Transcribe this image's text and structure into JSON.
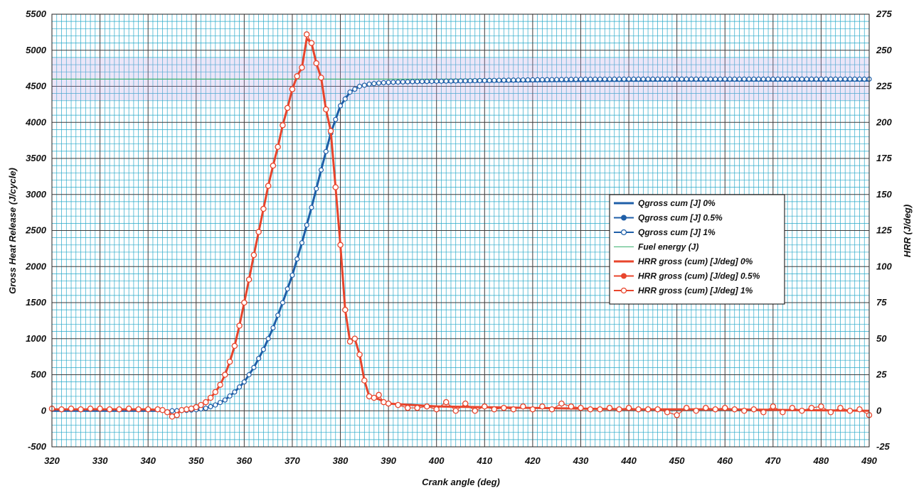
{
  "chart_data": {
    "type": "line",
    "xlabel": "Crank angle  (deg)",
    "ylabel_left": "Gross Heat Release  (J/cycle)",
    "ylabel_right": "HRR  (J/deg)",
    "xlim": [
      320,
      490
    ],
    "ylim_left": [
      -500,
      5500
    ],
    "ylim_right": [
      -25,
      275
    ],
    "x_ticks": [
      "320",
      "330",
      "340",
      "350",
      "360",
      "370",
      "380",
      "390",
      "400",
      "410",
      "420",
      "430",
      "440",
      "450",
      "460",
      "470",
      "480",
      "490"
    ],
    "y_left_ticks": [
      "-500",
      "0",
      "500",
      "1000",
      "1500",
      "2000",
      "2500",
      "3000",
      "3500",
      "4000",
      "4500",
      "5000",
      "5500"
    ],
    "y_right_ticks": [
      "-25",
      "0",
      "25",
      "50",
      "75",
      "100",
      "125",
      "150",
      "175",
      "200",
      "225",
      "250",
      "275"
    ],
    "grid": true,
    "legend_position": "right",
    "legend": [
      {
        "label": "Qgross cum [J] 0%",
        "color": "#1f5fa8",
        "marker": "none",
        "weight": "thick"
      },
      {
        "label": "Qgross cum [J] 0.5%",
        "color": "#1f5fa8",
        "marker": "filled"
      },
      {
        "label": "Qgross cum [J] 1%",
        "color": "#1f5fa8",
        "marker": "open"
      },
      {
        "label": "Fuel energy  (J)",
        "color": "#3cb371",
        "marker": "none",
        "weight": "thin"
      },
      {
        "label": "HRR gross (cum) [J/deg] 0%",
        "color": "#e8452c",
        "marker": "none",
        "weight": "thick"
      },
      {
        "label": "HRR gross (cum) [J/deg] 0.5%",
        "color": "#e8452c",
        "marker": "filled"
      },
      {
        "label": "HRR gross (cum) [J/deg] 1%",
        "color": "#e8452c",
        "marker": "open"
      }
    ],
    "series": [
      {
        "name": "Qgross cum [J] 0%",
        "axis": "left",
        "x": [
          320,
          340,
          344,
          346,
          348,
          350,
          352,
          354,
          356,
          358,
          360,
          362,
          364,
          366,
          368,
          370,
          372,
          374,
          376,
          378,
          380,
          382,
          384,
          386,
          388,
          390,
          395,
          400,
          410,
          420,
          430,
          440,
          450,
          460,
          470,
          480,
          490
        ],
        "y": [
          0,
          0,
          0,
          0,
          5,
          15,
          35,
          80,
          150,
          260,
          400,
          600,
          850,
          1150,
          1500,
          1880,
          2330,
          2820,
          3340,
          3850,
          4230,
          4420,
          4500,
          4530,
          4545,
          4550,
          4555,
          4560,
          4565,
          4570,
          4575,
          4578,
          4580,
          4580,
          4580,
          4580,
          4580
        ]
      },
      {
        "name": "Qgross cum [J] 1%",
        "axis": "left",
        "x": [
          320,
          340,
          344,
          346,
          348,
          350,
          352,
          354,
          356,
          358,
          360,
          362,
          364,
          366,
          368,
          370,
          372,
          374,
          376,
          378,
          380,
          382,
          384,
          386,
          388,
          390,
          395,
          400,
          410,
          420,
          430,
          440,
          450,
          460,
          470,
          480,
          490
        ],
        "y": [
          0,
          0,
          0,
          0,
          5,
          15,
          35,
          80,
          150,
          260,
          400,
          600,
          850,
          1150,
          1500,
          1880,
          2330,
          2820,
          3340,
          3850,
          4230,
          4420,
          4500,
          4530,
          4545,
          4555,
          4565,
          4570,
          4580,
          4590,
          4598,
          4600,
          4600,
          4600,
          4600,
          4600,
          4600
        ]
      },
      {
        "name": "Fuel energy  (J)",
        "axis": "left",
        "x": [
          320,
          490
        ],
        "y": [
          4600,
          4600
        ]
      },
      {
        "name": "HRR gross (cum) [J/deg] 1%",
        "axis": "right",
        "x": [
          320,
          322,
          324,
          326,
          328,
          330,
          332,
          334,
          336,
          338,
          340,
          342,
          343,
          344,
          345,
          346,
          347,
          348,
          349,
          350,
          351,
          352,
          353,
          354,
          355,
          356,
          357,
          358,
          359,
          360,
          361,
          362,
          363,
          364,
          365,
          366,
          367,
          368,
          369,
          370,
          371,
          372,
          373,
          374,
          375,
          376,
          377,
          378,
          379,
          380,
          381,
          382,
          383,
          384,
          385,
          386,
          387,
          388,
          389,
          390,
          392,
          394,
          396,
          398,
          400,
          402,
          404,
          406,
          408,
          410,
          412,
          414,
          416,
          418,
          420,
          422,
          424,
          426,
          428,
          430,
          432,
          434,
          436,
          438,
          440,
          442,
          444,
          446,
          448,
          450,
          452,
          454,
          456,
          458,
          460,
          462,
          464,
          466,
          468,
          470,
          472,
          474,
          476,
          478,
          480,
          482,
          484,
          486,
          488,
          490
        ],
        "y": [
          1.5,
          1,
          1.5,
          1,
          1.5,
          1.5,
          1,
          1,
          1.5,
          1,
          1,
          1,
          0.5,
          -1,
          -4,
          -3,
          0.5,
          1,
          1.5,
          2.5,
          4,
          6,
          9,
          13,
          18,
          25,
          34,
          45,
          59,
          75,
          91,
          108,
          124,
          140,
          156,
          170,
          183,
          198,
          210,
          223,
          232,
          238,
          261,
          255,
          241,
          231,
          209,
          194,
          155,
          115,
          70,
          48,
          50,
          39,
          21,
          10,
          9,
          11,
          6,
          5,
          4,
          2,
          2,
          3,
          1,
          6,
          0,
          5,
          0,
          3,
          1,
          2,
          1,
          3,
          1,
          3,
          1,
          5,
          3,
          2,
          1,
          1,
          2,
          1,
          2,
          1,
          1,
          1,
          -1,
          -3,
          2,
          0,
          2,
          1,
          2,
          1,
          0,
          1,
          -1,
          3,
          -1,
          2,
          0,
          2,
          3,
          -1,
          2,
          0,
          1,
          -3
        ]
      },
      {
        "name": "HRR gross (cum) [J/deg] 0%",
        "axis": "right",
        "x": [
          320,
          340,
          343,
          344,
          345,
          346,
          347,
          348,
          349,
          350,
          351,
          352,
          353,
          354,
          355,
          356,
          357,
          358,
          359,
          360,
          361,
          362,
          363,
          364,
          365,
          366,
          367,
          368,
          369,
          370,
          371,
          372,
          373,
          374,
          375,
          376,
          377,
          378,
          379,
          380,
          381,
          382,
          383,
          384,
          385,
          386,
          387,
          388,
          390,
          400,
          420,
          440,
          460,
          490
        ],
        "y": [
          1,
          1,
          0.5,
          -1,
          -3,
          -2,
          0.5,
          1,
          1.5,
          2.5,
          4,
          6,
          9,
          13,
          18,
          25,
          34,
          45,
          59,
          75,
          91,
          108,
          124,
          140,
          156,
          170,
          183,
          198,
          210,
          223,
          232,
          238,
          258,
          255,
          241,
          231,
          209,
          194,
          155,
          115,
          70,
          48,
          50,
          39,
          21,
          10,
          9,
          8,
          5,
          3,
          2,
          1,
          1,
          0
        ]
      }
    ]
  }
}
